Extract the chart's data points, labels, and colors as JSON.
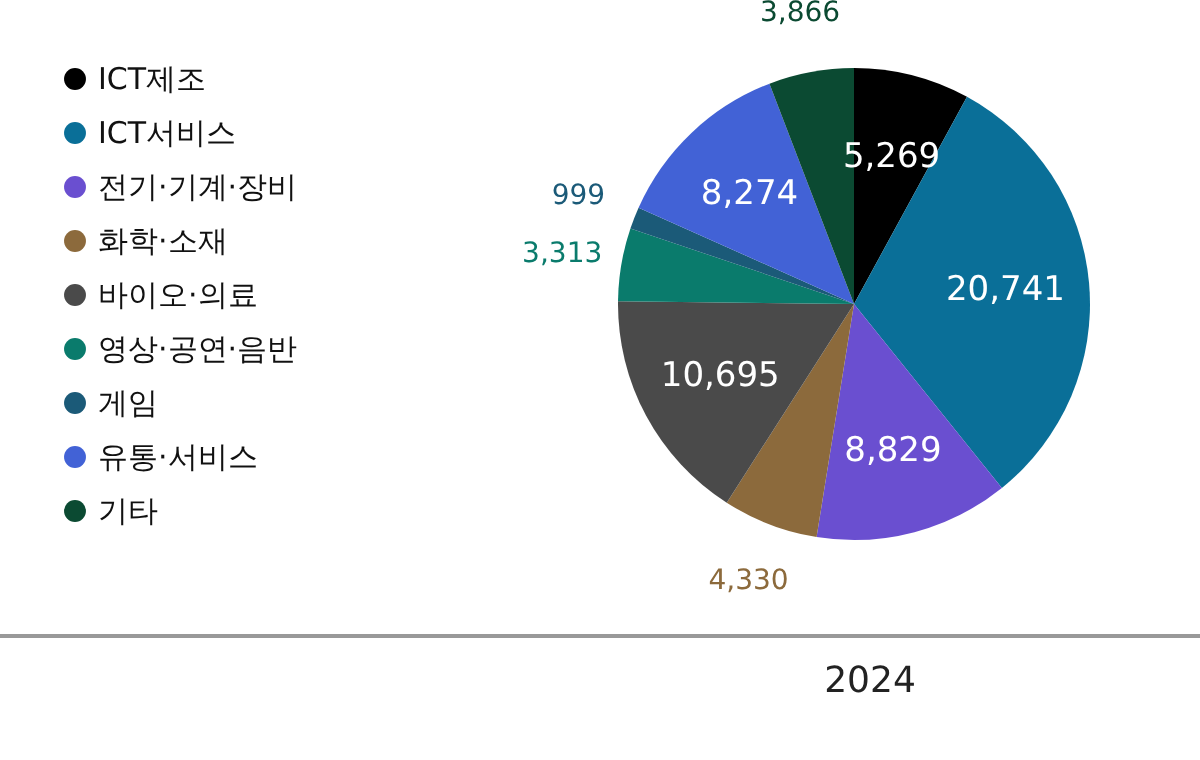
{
  "chart_data": {
    "type": "pie",
    "categories": [
      "ICT제조",
      "ICT서비스",
      "전기·기계·장비",
      "화학·소재",
      "바이오·의료",
      "영상·공연·음반",
      "게임",
      "유통·서비스",
      "기타"
    ],
    "values": [
      5269,
      20741,
      8829,
      4330,
      10695,
      3313,
      999,
      8274,
      3866
    ],
    "colors": [
      "#000000",
      "#0a6f98",
      "#6a4fd0",
      "#8c6a3c",
      "#4a4a4a",
      "#0a7b6c",
      "#1b5a78",
      "#4262d6",
      "#0b4a32"
    ],
    "value_labels": [
      "5,269",
      "20,741",
      "8,829",
      "4,330",
      "10,695",
      "3,313",
      "999",
      "8,274",
      "3,866"
    ],
    "legend": "left",
    "annotations": [
      "2024"
    ]
  }
}
